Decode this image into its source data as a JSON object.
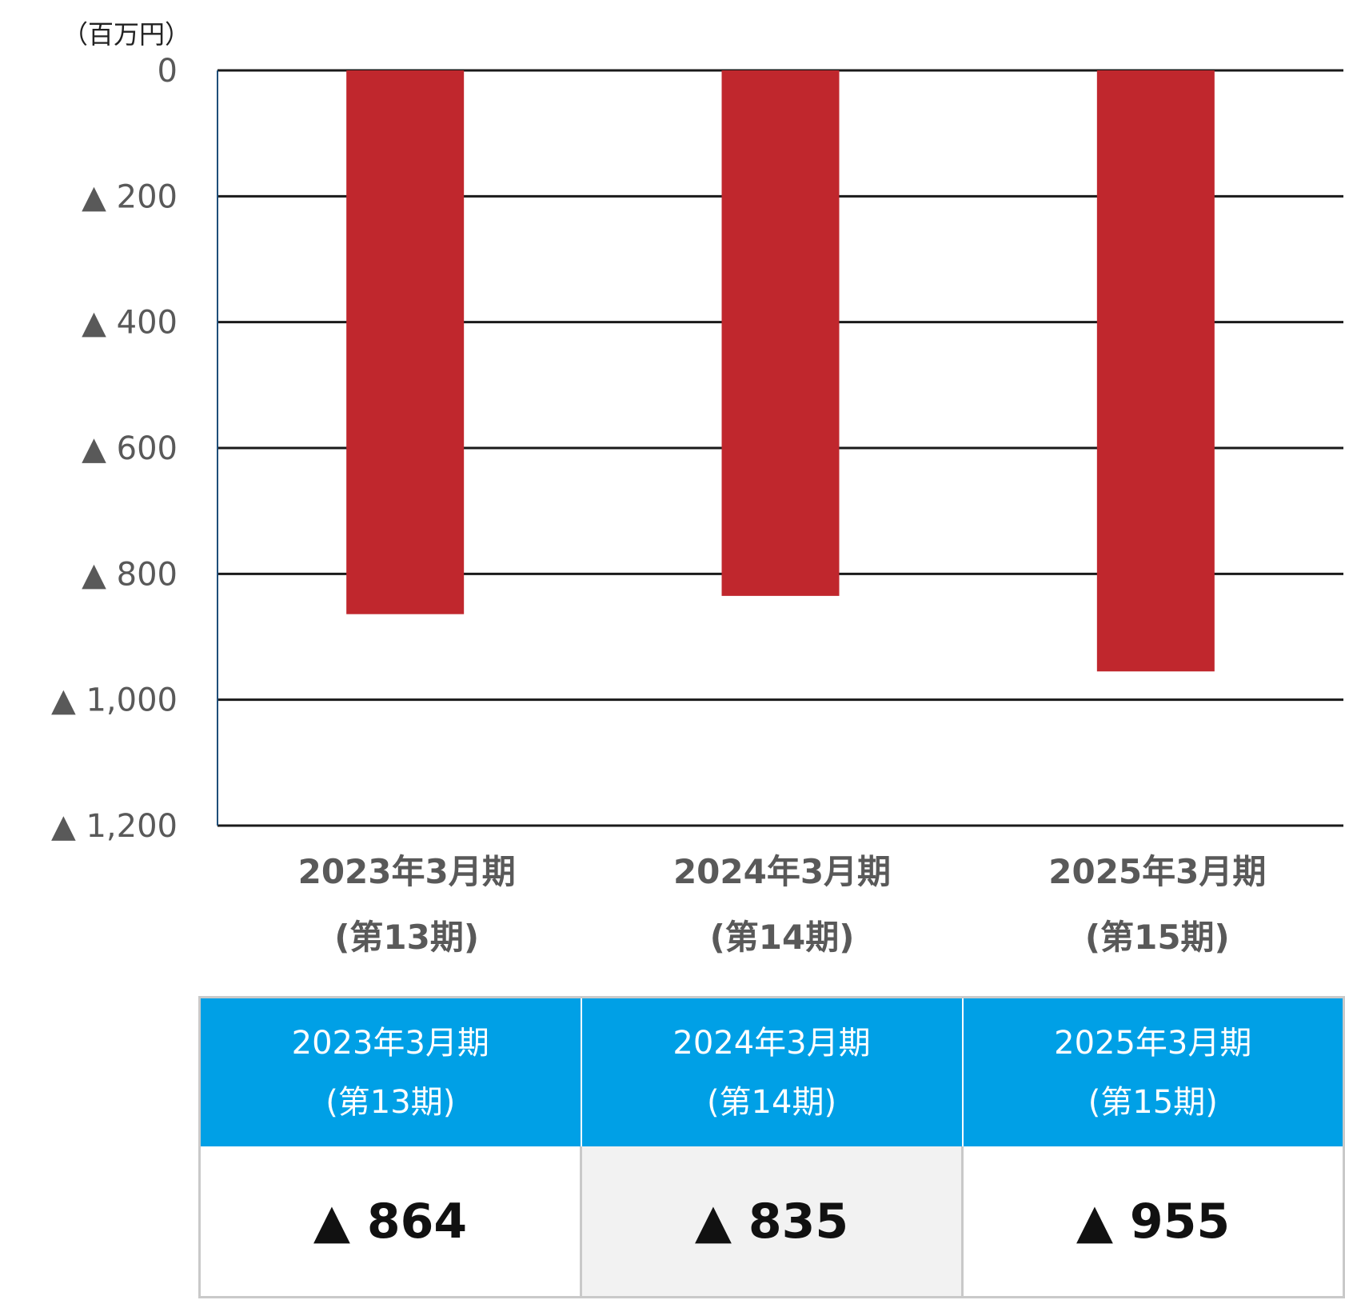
{
  "chart_data": {
    "type": "bar",
    "unit_label": "（百万円）",
    "categories": [
      [
        "2023年3月期",
        "(第13期)"
      ],
      [
        "2024年3月期",
        "(第14期)"
      ],
      [
        "2025年3月期",
        "(第15期)"
      ]
    ],
    "values": [
      -864,
      -835,
      -955
    ],
    "yticks": [
      {
        "value": 0,
        "label": "0"
      },
      {
        "value": -200,
        "label": "▲ 200"
      },
      {
        "value": -400,
        "label": "▲ 400"
      },
      {
        "value": -600,
        "label": "▲ 600"
      },
      {
        "value": -800,
        "label": "▲ 800"
      },
      {
        "value": -1000,
        "label": "▲ 1,000"
      },
      {
        "value": -1200,
        "label": "▲ 1,200"
      }
    ],
    "ylim": [
      -1200,
      0
    ],
    "grid": true,
    "bar_color": "#c0272d"
  },
  "table": {
    "headers": [
      {
        "line1": "2023年3月期",
        "line2": "(第13期)"
      },
      {
        "line1": "2024年3月期",
        "line2": "(第14期)"
      },
      {
        "line1": "2025年3月期",
        "line2": "(第15期)"
      }
    ],
    "values": [
      "▲ 864",
      "▲ 835",
      "▲ 955"
    ],
    "header_color": "#00a0e6"
  }
}
